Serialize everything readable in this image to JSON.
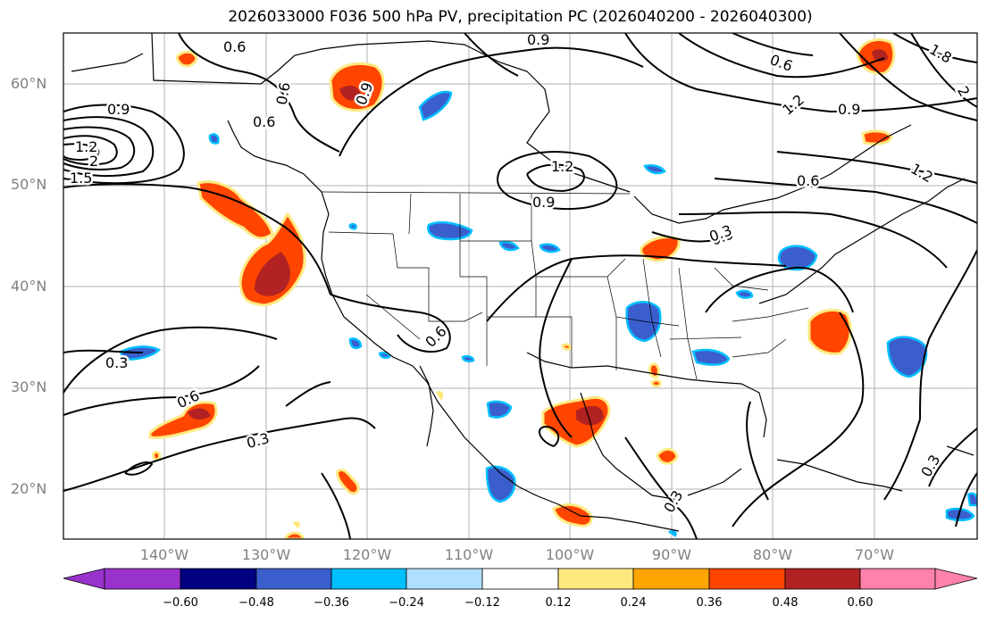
{
  "title": "2026033000 F036 500 hPa PV, precipitation PC (2026040200 - 2026040300)",
  "lat_labels": [
    "60°N",
    "50°N",
    "40°N",
    "30°N",
    "20°N"
  ],
  "lon_labels": [
    "140°W",
    "130°W",
    "120°W",
    "110°W",
    "100°W",
    "90°W",
    "80°W",
    "70°W"
  ],
  "contour_labels": [
    "0.6",
    "0.9",
    "0.9",
    "0.6",
    "0.6",
    "0.9",
    "1.2",
    "1.5",
    "2",
    "1.2",
    "1.2",
    "0.9",
    "0.9",
    "0.6",
    "0.9",
    "1.2",
    "0.6",
    "0.3",
    "1.8",
    "2",
    "0.6",
    "0.6",
    "0.3",
    "0.3",
    "0.3",
    "0.3"
  ],
  "colorbar": {
    "tick_labels": [
      "−0.60",
      "−0.48",
      "−0.36",
      "−0.24",
      "−0.12",
      "0.12",
      "0.24",
      "0.36",
      "0.48",
      "0.60"
    ],
    "colors": [
      "#9932cc",
      "#000080",
      "#3a5fcd",
      "#00bfff",
      "#b0e0ff",
      "#ffffff",
      "#ffe97f",
      "#ffa500",
      "#ff4500",
      "#b22222",
      "#ff82ab"
    ]
  },
  "precip_colors": {
    "neg_strong": "#3a5fcd",
    "neg_light": "#00bfff",
    "pos_light": "#ffe97f",
    "pos": "#ffa500",
    "pos_strong": "#ff4500",
    "pos_max": "#b22222"
  }
}
